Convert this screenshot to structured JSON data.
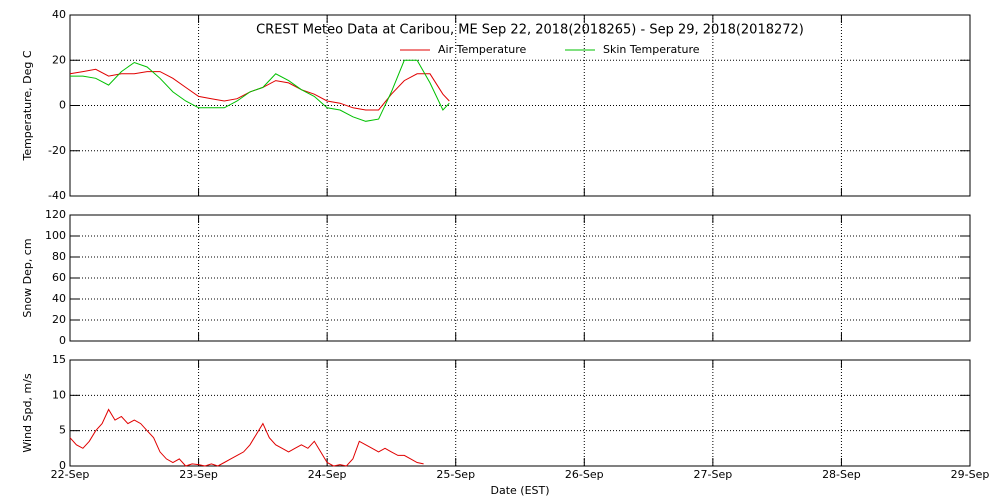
{
  "chart_data": [
    {
      "type": "line",
      "title": "CREST Meteo Data at Caribou, ME   Sep 22, 2018(2018265) - Sep 29, 2018(2018272)",
      "ylabel": "Temperature, Deg C",
      "ylim": [
        -40,
        40
      ],
      "yticks": [
        -40,
        -20,
        0,
        20,
        40
      ],
      "grid": true,
      "x": [
        0,
        0.1,
        0.2,
        0.3,
        0.4,
        0.5,
        0.6,
        0.7,
        0.8,
        0.9,
        1.0,
        1.1,
        1.2,
        1.3,
        1.4,
        1.5,
        1.6,
        1.7,
        1.8,
        1.9,
        2.0,
        2.1,
        2.2,
        2.3,
        2.4,
        2.5,
        2.6,
        2.7,
        2.8,
        2.9,
        2.95
      ],
      "series": [
        {
          "name": "Air Temperature",
          "color": "#e00000",
          "values": [
            14,
            15,
            16,
            13,
            14,
            14,
            15,
            15,
            12,
            8,
            4,
            3,
            2,
            3,
            6,
            8,
            11,
            10,
            7,
            5,
            2,
            1,
            -1,
            -2,
            -2,
            5,
            11,
            14,
            14,
            5,
            2
          ]
        },
        {
          "name": "Skin Temperature",
          "color": "#00c000",
          "values": [
            13,
            13,
            12,
            9,
            15,
            19,
            17,
            12,
            6,
            2,
            -1,
            -1,
            -1,
            2,
            6,
            8,
            14,
            11,
            7,
            4,
            -1,
            -2,
            -5,
            -7,
            -6,
            6,
            20,
            20,
            10,
            -2,
            1
          ]
        }
      ]
    },
    {
      "type": "line",
      "ylabel": "Snow Dep, cm",
      "ylim": [
        0,
        120
      ],
      "yticks": [
        0,
        20,
        40,
        60,
        80,
        100,
        120
      ],
      "grid": true,
      "series": []
    },
    {
      "type": "line",
      "ylabel": "Wind Spd, m/s",
      "xlabel": "Date (EST)",
      "xlim": [
        0,
        7
      ],
      "xticks": [
        {
          "value": 0,
          "label": "22-Sep"
        },
        {
          "value": 1,
          "label": "23-Sep"
        },
        {
          "value": 2,
          "label": "24-Sep"
        },
        {
          "value": 3,
          "label": "25-Sep"
        },
        {
          "value": 4,
          "label": "26-Sep"
        },
        {
          "value": 5,
          "label": "27-Sep"
        },
        {
          "value": 6,
          "label": "28-Sep"
        },
        {
          "value": 7,
          "label": "29-Sep"
        }
      ],
      "ylim": [
        0,
        15
      ],
      "yticks": [
        0,
        5,
        10,
        15
      ],
      "grid": true,
      "x": [
        0,
        0.05,
        0.1,
        0.15,
        0.2,
        0.25,
        0.3,
        0.35,
        0.4,
        0.45,
        0.5,
        0.55,
        0.6,
        0.65,
        0.7,
        0.75,
        0.8,
        0.85,
        0.9,
        0.95,
        1.0,
        1.05,
        1.1,
        1.15,
        1.2,
        1.25,
        1.3,
        1.35,
        1.4,
        1.45,
        1.5,
        1.55,
        1.6,
        1.65,
        1.7,
        1.75,
        1.8,
        1.85,
        1.9,
        1.95,
        2.0,
        2.05,
        2.1,
        2.15,
        2.2,
        2.25,
        2.3,
        2.35,
        2.4,
        2.45,
        2.5,
        2.55,
        2.6,
        2.65,
        2.7,
        2.75
      ],
      "series": [
        {
          "name": "Wind Speed",
          "color": "#e00000",
          "values": [
            4,
            3,
            2.5,
            3.5,
            5,
            6,
            8,
            6.5,
            7,
            6,
            6.5,
            6,
            5,
            4,
            2,
            1,
            0.5,
            1,
            0,
            0.3,
            0.2,
            0,
            0.3,
            0,
            0.5,
            1,
            1.5,
            2,
            3,
            4.5,
            6,
            4,
            3,
            2.5,
            2,
            2.5,
            3,
            2.5,
            3.5,
            2,
            0.5,
            0,
            0.2,
            0,
            1,
            3.5,
            3,
            2.5,
            2,
            2.5,
            2,
            1.5,
            1.5,
            1,
            0.5,
            0.3
          ]
        }
      ],
      "legend": false
    }
  ]
}
